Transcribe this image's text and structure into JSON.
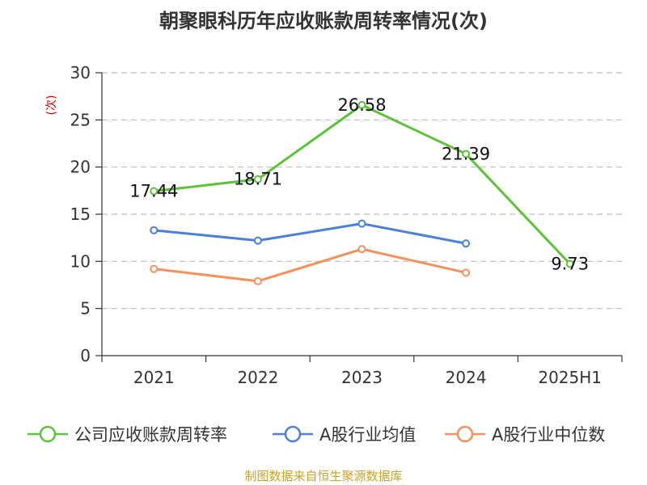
{
  "title": "朝聚眼科历年应收账款周转率情况(次)",
  "footer": "制图数据来自恒生聚源数据库",
  "chart_data": {
    "type": "line",
    "title": "朝聚眼科历年应收账款周转率情况(次)",
    "ylabel": "(次)",
    "xlabel": "",
    "categories": [
      "2021",
      "2022",
      "2023",
      "2024",
      "2025H1"
    ],
    "ylim": [
      0,
      30
    ],
    "yticks": [
      0,
      5,
      10,
      15,
      20,
      25,
      30
    ],
    "grid": true,
    "legend_position": "bottom",
    "series": [
      {
        "name": "公司应收账款周转率",
        "color": "#5cc23a",
        "values": [
          17.44,
          18.71,
          26.58,
          21.39,
          9.73
        ],
        "show_labels": true
      },
      {
        "name": "A股行业均值",
        "color": "#4a7fdc",
        "values": [
          13.3,
          12.2,
          14.0,
          11.9,
          null
        ],
        "show_labels": false
      },
      {
        "name": "A股行业中位数",
        "color": "#f5905a",
        "values": [
          9.2,
          7.9,
          11.3,
          8.8,
          null
        ],
        "show_labels": false
      }
    ]
  }
}
